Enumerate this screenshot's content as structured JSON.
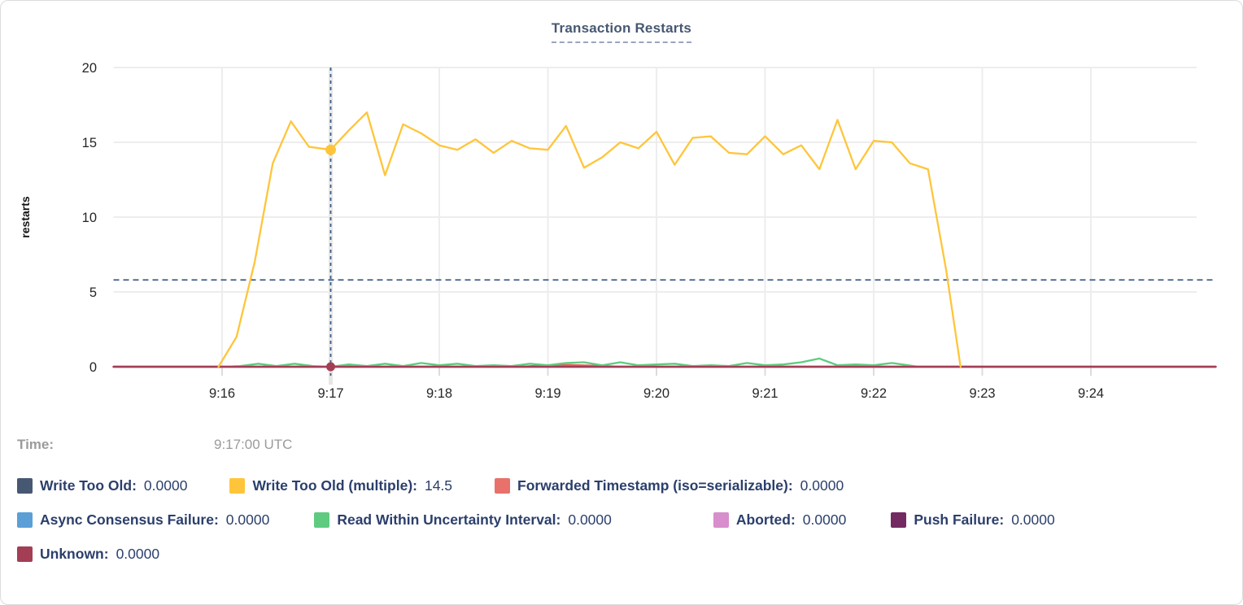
{
  "card": {
    "title": "Transaction Restarts"
  },
  "time_row": {
    "label": "Time:",
    "value": "9:17:00 UTC"
  },
  "colors": {
    "grid": "#ededed",
    "tick_stub": "#dcdcdc",
    "crosshair": "#3d5c85",
    "axis_text": "#262626",
    "title_text": "#475872",
    "legend_text": "#2b3f6c",
    "time_text": "#9b9b9b",
    "hover_band": "#e6e6e6"
  },
  "chart_data": {
    "type": "line",
    "title": "Transaction Restarts",
    "xlabel": "",
    "ylabel": "restarts",
    "grid": true,
    "x_axis": {
      "tick_labels": [
        "9:16",
        "9:17",
        "9:18",
        "9:19",
        "9:20",
        "9:21",
        "9:22",
        "9:23",
        "9:24"
      ],
      "tick_seconds": [
        60,
        120,
        180,
        240,
        300,
        360,
        420,
        480,
        540
      ],
      "domain_note": "seconds measured from 9:15:00 UTC",
      "domain_seconds": [
        0,
        609
      ]
    },
    "y_axis": {
      "ticks": [
        0,
        5,
        10,
        15,
        20
      ],
      "ylim": [
        0,
        20
      ]
    },
    "series": [
      {
        "name": "Write Too Old",
        "color": "#475872",
        "points": [
          [
            0,
            0
          ],
          [
            609,
            0
          ]
        ]
      },
      {
        "name": "Async Consensus Failure",
        "color": "#5c9fd6",
        "points": [
          [
            0,
            0
          ],
          [
            609,
            0
          ]
        ]
      },
      {
        "name": "Aborted",
        "color": "#d88dcc",
        "points": [
          [
            0,
            0
          ],
          [
            609,
            0
          ]
        ]
      },
      {
        "name": "Push Failure",
        "color": "#732a62",
        "points": [
          [
            0,
            0
          ],
          [
            609,
            0
          ]
        ]
      },
      {
        "name": "Forwarded Timestamp (iso=serializable)",
        "color": "#e0635a",
        "points": [
          [
            0,
            0
          ],
          [
            225,
            0
          ],
          [
            238,
            0.1
          ],
          [
            252,
            0.12
          ],
          [
            268,
            0.06
          ],
          [
            282,
            0
          ],
          [
            609,
            0
          ]
        ]
      },
      {
        "name": "Read Within Uncertainty Interval",
        "color": "#5ecb81",
        "points": [
          [
            60,
            0
          ],
          [
            70,
            0.05
          ],
          [
            80,
            0.2
          ],
          [
            90,
            0.05
          ],
          [
            100,
            0.2
          ],
          [
            110,
            0.05
          ],
          [
            120,
            0
          ],
          [
            130,
            0.15
          ],
          [
            140,
            0.05
          ],
          [
            150,
            0.2
          ],
          [
            160,
            0.05
          ],
          [
            170,
            0.25
          ],
          [
            180,
            0.1
          ],
          [
            190,
            0.2
          ],
          [
            200,
            0.05
          ],
          [
            210,
            0.1
          ],
          [
            220,
            0.05
          ],
          [
            230,
            0.2
          ],
          [
            240,
            0.1
          ],
          [
            250,
            0.25
          ],
          [
            260,
            0.3
          ],
          [
            270,
            0.1
          ],
          [
            280,
            0.3
          ],
          [
            290,
            0.1
          ],
          [
            300,
            0.15
          ],
          [
            310,
            0.2
          ],
          [
            320,
            0.05
          ],
          [
            330,
            0.1
          ],
          [
            340,
            0.05
          ],
          [
            350,
            0.25
          ],
          [
            360,
            0.1
          ],
          [
            370,
            0.15
          ],
          [
            380,
            0.3
          ],
          [
            390,
            0.55
          ],
          [
            400,
            0.1
          ],
          [
            410,
            0.15
          ],
          [
            420,
            0.1
          ],
          [
            430,
            0.25
          ],
          [
            445,
            0
          ]
        ]
      },
      {
        "name": "Unknown",
        "color": "#a43e55",
        "points": [
          [
            0,
            0
          ],
          [
            609,
            0
          ]
        ]
      },
      {
        "name": "Write Too Old (multiple)",
        "color": "#ffc53a",
        "points": [
          [
            58,
            0
          ],
          [
            68,
            2
          ],
          [
            78,
            7
          ],
          [
            88,
            13.6
          ],
          [
            98,
            16.4
          ],
          [
            108,
            14.7
          ],
          [
            120,
            14.5
          ],
          [
            130,
            15.8
          ],
          [
            140,
            17
          ],
          [
            150,
            12.8
          ],
          [
            160,
            16.2
          ],
          [
            170,
            15.6
          ],
          [
            180,
            14.8
          ],
          [
            190,
            14.5
          ],
          [
            200,
            15.2
          ],
          [
            210,
            14.3
          ],
          [
            220,
            15.1
          ],
          [
            230,
            14.6
          ],
          [
            240,
            14.5
          ],
          [
            250,
            16.1
          ],
          [
            260,
            13.3
          ],
          [
            270,
            14
          ],
          [
            280,
            15
          ],
          [
            290,
            14.6
          ],
          [
            300,
            15.7
          ],
          [
            310,
            13.5
          ],
          [
            320,
            15.3
          ],
          [
            330,
            15.4
          ],
          [
            340,
            14.3
          ],
          [
            350,
            14.2
          ],
          [
            360,
            15.4
          ],
          [
            370,
            14.2
          ],
          [
            380,
            14.8
          ],
          [
            390,
            13.2
          ],
          [
            400,
            16.5
          ],
          [
            410,
            13.2
          ],
          [
            420,
            15.1
          ],
          [
            430,
            15
          ],
          [
            440,
            13.6
          ],
          [
            450,
            13.2
          ],
          [
            460,
            6.5
          ],
          [
            468,
            0
          ]
        ]
      }
    ],
    "hover": {
      "time": "9:17:00 UTC",
      "x_seconds": 120,
      "guide_value": 5.8,
      "points": [
        {
          "series": "Write Too Old (multiple)",
          "value": 14.5,
          "color": "#ffc53a",
          "radius": 6.5
        },
        {
          "series": "Unknown",
          "value": 0,
          "color": "#a43e55",
          "radius": 5.5
        }
      ]
    }
  },
  "legend": {
    "rows": [
      [
        {
          "label": "Write Too Old:",
          "value": "0.0000",
          "color": "#475872"
        },
        {
          "label": "Write Too Old (multiple):",
          "value": "14.5",
          "color": "#ffc53a"
        },
        {
          "label": "Forwarded Timestamp (iso=serializable):",
          "value": "0.0000",
          "color": "#e8716b"
        }
      ],
      [
        {
          "label": "Async Consensus Failure:",
          "value": "0.0000",
          "color": "#5c9fd6"
        },
        {
          "label": "Read Within Uncertainty Interval:",
          "value": "0.0000",
          "color": "#5ecb81"
        },
        {
          "label": "Aborted:",
          "value": "0.0000",
          "color": "#d88dcc"
        },
        {
          "label": "Push Failure:",
          "value": "0.0000",
          "color": "#732a62"
        }
      ],
      [
        {
          "label": "Unknown:",
          "value": "0.0000",
          "color": "#a43e55"
        }
      ]
    ]
  }
}
